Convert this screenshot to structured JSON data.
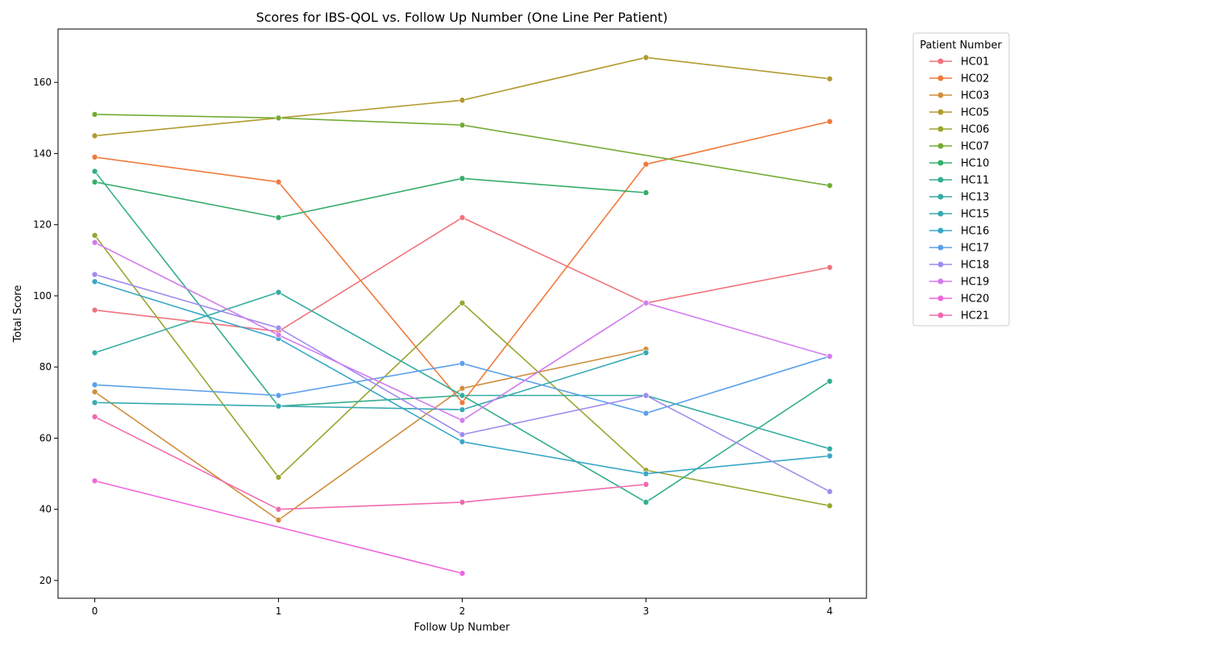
{
  "chart_data": {
    "type": "line",
    "title": "Scores for IBS-QOL vs. Follow Up Number (One Line Per Patient)",
    "xlabel": "Follow Up Number",
    "ylabel": "Total Score",
    "x_ticks": [
      0,
      1,
      2,
      3,
      4
    ],
    "y_ticks": [
      20,
      40,
      60,
      80,
      100,
      120,
      140,
      160
    ],
    "xlim": [
      -0.2,
      4.2
    ],
    "ylim": [
      15,
      175
    ],
    "grid": false,
    "legend": {
      "title": "Patient Number",
      "placement": "right-outside"
    },
    "series": [
      {
        "name": "HC01",
        "color": "#f0737d",
        "points": [
          [
            0,
            96
          ],
          [
            1,
            90
          ],
          [
            2,
            122
          ],
          [
            3,
            98
          ],
          [
            4,
            108
          ]
        ]
      },
      {
        "name": "HC02",
        "color": "#f07a3c",
        "points": [
          [
            0,
            139
          ],
          [
            1,
            132
          ],
          [
            2,
            70
          ],
          [
            3,
            137
          ],
          [
            4,
            149
          ]
        ]
      },
      {
        "name": "HC03",
        "color": "#d08f3d",
        "points": [
          [
            0,
            73
          ],
          [
            1,
            37
          ],
          [
            2,
            74
          ],
          [
            3,
            85
          ]
        ]
      },
      {
        "name": "HC05",
        "color": "#b29a30",
        "points": [
          [
            0,
            145
          ],
          [
            1,
            150
          ],
          [
            2,
            155
          ],
          [
            3,
            167
          ],
          [
            4,
            161
          ]
        ]
      },
      {
        "name": "HC06",
        "color": "#99a530",
        "points": [
          [
            0,
            117
          ],
          [
            1,
            49
          ],
          [
            2,
            98
          ],
          [
            3,
            51
          ],
          [
            4,
            41
          ]
        ]
      },
      {
        "name": "HC07",
        "color": "#72ac33",
        "points": [
          [
            0,
            151
          ],
          [
            1,
            150
          ],
          [
            2,
            148
          ],
          [
            4,
            131
          ]
        ]
      },
      {
        "name": "HC10",
        "color": "#35ad6a",
        "points": [
          [
            0,
            132
          ],
          [
            1,
            122
          ],
          [
            2,
            133
          ],
          [
            3,
            129
          ]
        ]
      },
      {
        "name": "HC11",
        "color": "#33ae8e",
        "points": [
          [
            0,
            135
          ],
          [
            1,
            69
          ],
          [
            2,
            72
          ],
          [
            3,
            42
          ],
          [
            4,
            76
          ]
        ]
      },
      {
        "name": "HC13",
        "color": "#35aca1",
        "points": [
          [
            0,
            84
          ],
          [
            1,
            101
          ],
          [
            2,
            72
          ],
          [
            3,
            72
          ],
          [
            4,
            57
          ]
        ]
      },
      {
        "name": "HC15",
        "color": "#36aab2",
        "points": [
          [
            0,
            70
          ],
          [
            1,
            69
          ],
          [
            2,
            68
          ],
          [
            3,
            84
          ]
        ]
      },
      {
        "name": "HC16",
        "color": "#39a7c7",
        "points": [
          [
            0,
            104
          ],
          [
            1,
            88
          ],
          [
            2,
            59
          ],
          [
            3,
            50
          ],
          [
            4,
            55
          ]
        ]
      },
      {
        "name": "HC17",
        "color": "#5ba0ea",
        "points": [
          [
            0,
            75
          ],
          [
            1,
            72
          ],
          [
            2,
            81
          ],
          [
            3,
            67
          ],
          [
            4,
            83
          ]
        ]
      },
      {
        "name": "HC18",
        "color": "#a18bee",
        "points": [
          [
            0,
            106
          ],
          [
            1,
            91
          ],
          [
            2,
            61
          ],
          [
            3,
            72
          ],
          [
            4,
            45
          ]
        ]
      },
      {
        "name": "HC19",
        "color": "#d27cf0",
        "points": [
          [
            0,
            115
          ],
          [
            1,
            89
          ],
          [
            2,
            65
          ],
          [
            3,
            98
          ],
          [
            4,
            83
          ]
        ]
      },
      {
        "name": "HC20",
        "color": "#ee67dc",
        "points": [
          [
            0,
            48
          ],
          [
            2,
            22
          ]
        ]
      },
      {
        "name": "HC21",
        "color": "#f16ab0",
        "points": [
          [
            0,
            66
          ],
          [
            1,
            40
          ],
          [
            2,
            42
          ],
          [
            3,
            47
          ]
        ]
      }
    ]
  }
}
